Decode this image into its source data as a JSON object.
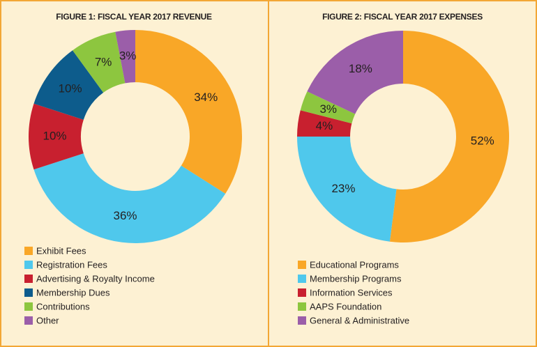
{
  "chart_data": [
    {
      "type": "donut",
      "title": "FIGURE 1: FISCAL YEAR 2017 REVENUE",
      "categories": [
        "Exhibit Fees",
        "Registration Fees",
        "Advertising & Royalty Income",
        "Membership Dues",
        "Contributions",
        "Other"
      ],
      "values": [
        34,
        36,
        10,
        10,
        7,
        3
      ],
      "value_labels": [
        "34%",
        "36%",
        "10%",
        "10%",
        "7%",
        "3%"
      ],
      "colors": [
        "#f9a727",
        "#4fc8ec",
        "#c8202f",
        "#0d5c8c",
        "#8dc63f",
        "#9b5ea9"
      ]
    },
    {
      "type": "donut",
      "title": "FIGURE 2: FISCAL YEAR 2017 EXPENSES",
      "categories": [
        "Educational Programs",
        "Membership Programs",
        "Information Services",
        "AAPS Foundation",
        "General & Administrative"
      ],
      "values": [
        52,
        23,
        4,
        3,
        18
      ],
      "value_labels": [
        "52%",
        "23%",
        "4%",
        "3%",
        "18%"
      ],
      "colors": [
        "#f9a727",
        "#4fc8ec",
        "#c8202f",
        "#8dc63f",
        "#9b5ea9"
      ]
    }
  ]
}
